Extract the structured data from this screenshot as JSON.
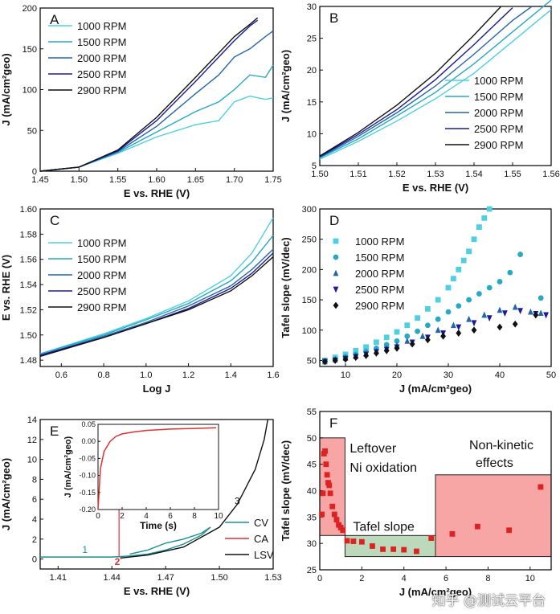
{
  "figure": {
    "watermark": "知乎 @测试云平台",
    "colors": {
      "c1000": "#4dd0e1",
      "c1500": "#26a9c4",
      "c2000": "#2166ac",
      "c2500": "#1a1a9c",
      "c2900": "#111111",
      "cv": "#1a8f8f",
      "ca": "#e03030",
      "lsv": "#111111",
      "box": "#f8a5a5",
      "box_green": "#bcd9bc",
      "red_points": "#dd2222"
    }
  },
  "chart_data": [
    {
      "panel": "A",
      "type": "line",
      "xlabel": "E vs. RHE (V)",
      "ylabel": "J (mA/cm²geo)",
      "xlim": [
        1.45,
        1.75
      ],
      "ylim": [
        0,
        200
      ],
      "xticks": [
        "1.45",
        "1.50",
        "1.55",
        "1.60",
        "1.65",
        "1.70",
        "1.75"
      ],
      "yticks": [
        "0",
        "50",
        "100",
        "150",
        "200"
      ],
      "legend_position": "left",
      "series": [
        {
          "name": "1000 RPM",
          "color": "c1000",
          "x": [
            1.45,
            1.5,
            1.55,
            1.6,
            1.65,
            1.68,
            1.7,
            1.72,
            1.74,
            1.75
          ],
          "y": [
            0,
            5,
            22,
            42,
            57,
            62,
            85,
            92,
            88,
            90
          ]
        },
        {
          "name": "1500 RPM",
          "color": "c1500",
          "x": [
            1.45,
            1.5,
            1.55,
            1.6,
            1.65,
            1.68,
            1.7,
            1.72,
            1.74,
            1.75
          ],
          "y": [
            0,
            5,
            23,
            48,
            73,
            85,
            100,
            118,
            115,
            130
          ]
        },
        {
          "name": "2000 RPM",
          "color": "c2000",
          "x": [
            1.45,
            1.5,
            1.55,
            1.6,
            1.65,
            1.68,
            1.7,
            1.72,
            1.74,
            1.75
          ],
          "y": [
            0,
            5,
            24,
            55,
            95,
            118,
            140,
            150,
            165,
            172
          ]
        },
        {
          "name": "2500 RPM",
          "color": "c2500",
          "x": [
            1.45,
            1.5,
            1.55,
            1.6,
            1.65,
            1.68,
            1.7,
            1.72,
            1.73
          ],
          "y": [
            0,
            5,
            25,
            62,
            110,
            140,
            160,
            178,
            185
          ]
        },
        {
          "name": "2900 RPM",
          "color": "c2900",
          "x": [
            1.45,
            1.5,
            1.55,
            1.6,
            1.65,
            1.68,
            1.7,
            1.72,
            1.73
          ],
          "y": [
            0,
            5,
            26,
            66,
            115,
            145,
            165,
            180,
            188
          ]
        }
      ]
    },
    {
      "panel": "B",
      "type": "line",
      "xlabel": "E vs. RHE (V)",
      "ylabel": "J (mA/cm²geo)",
      "xlim": [
        1.5,
        1.56
      ],
      "ylim": [
        5,
        30
      ],
      "xticks": [
        "1.50",
        "1.51",
        "1.52",
        "1.53",
        "1.54",
        "1.55",
        "1.56"
      ],
      "yticks": [
        "5",
        "10",
        "15",
        "20",
        "25",
        "30"
      ],
      "legend_position": "bottom-right",
      "series": [
        {
          "name": "1000 RPM",
          "color": "c1000",
          "x": [
            1.5,
            1.51,
            1.52,
            1.53,
            1.54,
            1.55,
            1.56
          ],
          "y": [
            6.0,
            8.8,
            12.0,
            15.5,
            19.5,
            24.5,
            29.5
          ]
        },
        {
          "name": "1500 RPM",
          "color": "c1500",
          "x": [
            1.5,
            1.51,
            1.52,
            1.53,
            1.54,
            1.55,
            1.56
          ],
          "y": [
            6.2,
            9.2,
            12.8,
            16.5,
            21.0,
            26.0,
            31.0
          ]
        },
        {
          "name": "2000 RPM",
          "color": "c2000",
          "x": [
            1.5,
            1.51,
            1.52,
            1.53,
            1.54,
            1.55,
            1.555
          ],
          "y": [
            6.3,
            9.6,
            13.3,
            17.5,
            22.5,
            27.8,
            30.0
          ]
        },
        {
          "name": "2500 RPM",
          "color": "c2500",
          "x": [
            1.5,
            1.51,
            1.52,
            1.53,
            1.54,
            1.55
          ],
          "y": [
            6.4,
            9.9,
            13.8,
            18.5,
            24.0,
            29.8
          ]
        },
        {
          "name": "2900 RPM",
          "color": "c2900",
          "x": [
            1.5,
            1.51,
            1.52,
            1.53,
            1.54,
            1.547
          ],
          "y": [
            6.5,
            10.2,
            14.5,
            19.5,
            25.5,
            30.0
          ]
        }
      ]
    },
    {
      "panel": "C",
      "type": "line",
      "xlabel": "Log J",
      "ylabel": "E vs. RHE (V)",
      "xlim": [
        0.5,
        1.6
      ],
      "ylim": [
        1.475,
        1.6
      ],
      "xticks": [
        "0.6",
        "0.8",
        "1.0",
        "1.2",
        "1.4",
        "1.6"
      ],
      "yticks": [
        "1.48",
        "1.50",
        "1.52",
        "1.54",
        "1.56",
        "1.58",
        "1.60"
      ],
      "legend_position": "top-left",
      "series": [
        {
          "name": "1000 RPM",
          "color": "c1000",
          "x": [
            0.5,
            0.8,
            1.0,
            1.2,
            1.4,
            1.5,
            1.6
          ],
          "y": [
            1.485,
            1.501,
            1.513,
            1.527,
            1.547,
            1.565,
            1.593
          ]
        },
        {
          "name": "1500 RPM",
          "color": "c1500",
          "x": [
            0.5,
            0.8,
            1.0,
            1.2,
            1.4,
            1.5,
            1.6
          ],
          "y": [
            1.485,
            1.5,
            1.512,
            1.525,
            1.543,
            1.558,
            1.579
          ]
        },
        {
          "name": "2000 RPM",
          "color": "c2000",
          "x": [
            0.5,
            0.8,
            1.0,
            1.2,
            1.4,
            1.5,
            1.6
          ],
          "y": [
            1.484,
            1.499,
            1.51,
            1.523,
            1.539,
            1.552,
            1.568
          ]
        },
        {
          "name": "2500 RPM",
          "color": "c2500",
          "x": [
            0.5,
            0.8,
            1.0,
            1.2,
            1.4,
            1.5,
            1.6
          ],
          "y": [
            1.484,
            1.498,
            1.509,
            1.521,
            1.537,
            1.549,
            1.565
          ]
        },
        {
          "name": "2900 RPM",
          "color": "c2900",
          "x": [
            0.5,
            0.8,
            1.0,
            1.2,
            1.4,
            1.5,
            1.6
          ],
          "y": [
            1.483,
            1.498,
            1.509,
            1.52,
            1.535,
            1.547,
            1.562
          ]
        }
      ]
    },
    {
      "panel": "D",
      "type": "scatter",
      "xlabel": "J (mA/cm²geo)",
      "ylabel": "Tafel slope (mV/dec)",
      "xlim": [
        5,
        50
      ],
      "ylim": [
        40,
        300
      ],
      "xticks": [
        "10",
        "20",
        "30",
        "40",
        "50"
      ],
      "yticks": [
        "50",
        "100",
        "150",
        "200",
        "250",
        "300"
      ],
      "legend_position": "top-left",
      "series": [
        {
          "name": "1000 RPM",
          "marker": "square",
          "color": "c1000",
          "x": [
            6,
            8,
            10,
            12,
            14,
            16,
            18,
            20,
            22,
            24,
            26,
            28,
            30,
            31,
            32,
            33,
            34,
            35,
            36,
            37,
            38
          ],
          "y": [
            50,
            55,
            60,
            66,
            72,
            80,
            88,
            97,
            108,
            120,
            135,
            150,
            170,
            185,
            200,
            215,
            230,
            250,
            270,
            285,
            300
          ]
        },
        {
          "name": "1500 RPM",
          "marker": "circle",
          "color": "c1500",
          "x": [
            6,
            8,
            10,
            12,
            14,
            16,
            18,
            20,
            22,
            24,
            26,
            28,
            30,
            32,
            34,
            36,
            38,
            40,
            42,
            44,
            48
          ],
          "y": [
            49,
            52,
            56,
            60,
            65,
            70,
            76,
            82,
            90,
            98,
            108,
            118,
            130,
            140,
            150,
            160,
            170,
            180,
            195,
            225,
            153
          ]
        },
        {
          "name": "2000 RPM",
          "marker": "triangle-up",
          "color": "c2000",
          "x": [
            6,
            8,
            10,
            12,
            14,
            16,
            18,
            20,
            22,
            25,
            28,
            31,
            34,
            37,
            40,
            43,
            46,
            48
          ],
          "y": [
            48,
            51,
            54,
            57,
            61,
            65,
            70,
            75,
            82,
            90,
            100,
            108,
            118,
            125,
            133,
            138,
            130,
            128
          ]
        },
        {
          "name": "2500 RPM",
          "marker": "triangle-down",
          "color": "c2500",
          "x": [
            6,
            8,
            10,
            12,
            14,
            16,
            18,
            20,
            23,
            26,
            29,
            32,
            35,
            38,
            41,
            44,
            47,
            49
          ],
          "y": [
            48,
            50,
            53,
            56,
            60,
            64,
            68,
            72,
            80,
            88,
            95,
            105,
            112,
            120,
            128,
            132,
            127,
            125
          ]
        },
        {
          "name": "2900 RPM",
          "marker": "diamond",
          "color": "c2900",
          "x": [
            6,
            8,
            10,
            12,
            14,
            16,
            18,
            20,
            23,
            26,
            29,
            32,
            35,
            40,
            43,
            47
          ],
          "y": [
            48,
            50,
            52,
            55,
            58,
            62,
            66,
            70,
            77,
            84,
            90,
            95,
            100,
            105,
            110,
            125
          ]
        }
      ]
    },
    {
      "panel": "E",
      "type": "line",
      "xlabel": "E vs. RHE (V)",
      "ylabel": "J (mA/cm²geo)",
      "xlim": [
        1.4,
        1.53
      ],
      "ylim": [
        -1,
        14
      ],
      "xticks": [
        "1.41",
        "1.44",
        "1.47",
        "1.50",
        "1.53"
      ],
      "yticks": [
        "0",
        "2",
        "4",
        "6",
        "8",
        "10",
        "12",
        "14"
      ],
      "legend_position": "bottom-right",
      "annotations": [
        "1",
        "2",
        "3"
      ],
      "series": [
        {
          "name": "CV",
          "color": "cv",
          "x": [
            1.4,
            1.44,
            1.45,
            1.46,
            1.47,
            1.48,
            1.49,
            1.495,
            1.49,
            1.48,
            1.47,
            1.46,
            1.45
          ],
          "y": [
            0.2,
            0.2,
            0.3,
            0.5,
            0.9,
            1.5,
            2.4,
            3.2,
            2.6,
            2.0,
            1.6,
            0.9,
            0.5
          ]
        },
        {
          "name": "CA",
          "color": "ca",
          "x": [
            1.445,
            1.445
          ],
          "y": [
            0,
            0.2
          ]
        },
        {
          "name": "LSV",
          "color": "lsv",
          "x": [
            1.445,
            1.46,
            1.48,
            1.5,
            1.51,
            1.52,
            1.525,
            1.527
          ],
          "y": [
            0.1,
            0.4,
            1.2,
            3.2,
            5.5,
            9,
            12,
            14
          ]
        }
      ],
      "inset": {
        "xlabel": "Time (s)",
        "ylabel": "J (mA/cm²geo)",
        "xlim": [
          0,
          10
        ],
        "ylim": [
          -0.2,
          0.05
        ],
        "xticks": [
          "0",
          "2",
          "4",
          "6",
          "8",
          "10"
        ],
        "yticks": [
          "-0.20",
          "-0.15",
          "-0.10",
          "-0.05",
          "0.00",
          "0.05"
        ],
        "series": [
          {
            "name": "CA",
            "color": "ca",
            "x": [
              0,
              0.2,
              0.5,
              1,
              1.5,
              2,
              3,
              4,
              5,
              6,
              7,
              8,
              9,
              9.8
            ],
            "y": [
              -0.2,
              -0.08,
              -0.03,
              0.0,
              0.015,
              0.022,
              0.028,
              0.032,
              0.034,
              0.036,
              0.037,
              0.038,
              0.039,
              0.04
            ]
          }
        ]
      }
    },
    {
      "panel": "F",
      "type": "scatter",
      "xlabel": "J (mA/cm²geo)",
      "ylabel": "Tafel slope (mV/dec)",
      "xlim": [
        0,
        11
      ],
      "ylim": [
        25,
        55
      ],
      "xticks": [
        "0",
        "2",
        "4",
        "6",
        "8",
        "10"
      ],
      "yticks": [
        "25",
        "30",
        "35",
        "40",
        "45",
        "50",
        "55"
      ],
      "regions": [
        {
          "label": "Leftover Ni oxidation",
          "x": [
            0,
            1.2
          ],
          "y": [
            31.5,
            50
          ]
        },
        {
          "label": "Tafel slope",
          "x": [
            1.2,
            5.5
          ],
          "y": [
            27.5,
            31.5
          ]
        },
        {
          "label": "Non-kinetic effects",
          "x": [
            5.5,
            11
          ],
          "y": [
            27.5,
            43
          ]
        }
      ],
      "series": [
        {
          "name": "",
          "marker": "square",
          "color": "red_points",
          "x": [
            0.1,
            0.15,
            0.2,
            0.25,
            0.3,
            0.35,
            0.4,
            0.45,
            0.5,
            0.6,
            0.7,
            0.8,
            0.9,
            1.0,
            1.1,
            1.3,
            1.6,
            2.0,
            2.5,
            3.0,
            3.5,
            4.0,
            4.6,
            5.3,
            6.3,
            7.5,
            9.0,
            10.5
          ],
          "y": [
            35.5,
            39.5,
            47,
            47.5,
            45,
            43,
            41.5,
            41,
            39.5,
            37,
            35.5,
            34.5,
            33.5,
            33,
            32.5,
            30.5,
            30.4,
            30.3,
            29.5,
            28.9,
            28.9,
            28.8,
            28.5,
            31,
            31.8,
            33.2,
            32.5,
            40.7
          ]
        }
      ]
    }
  ]
}
